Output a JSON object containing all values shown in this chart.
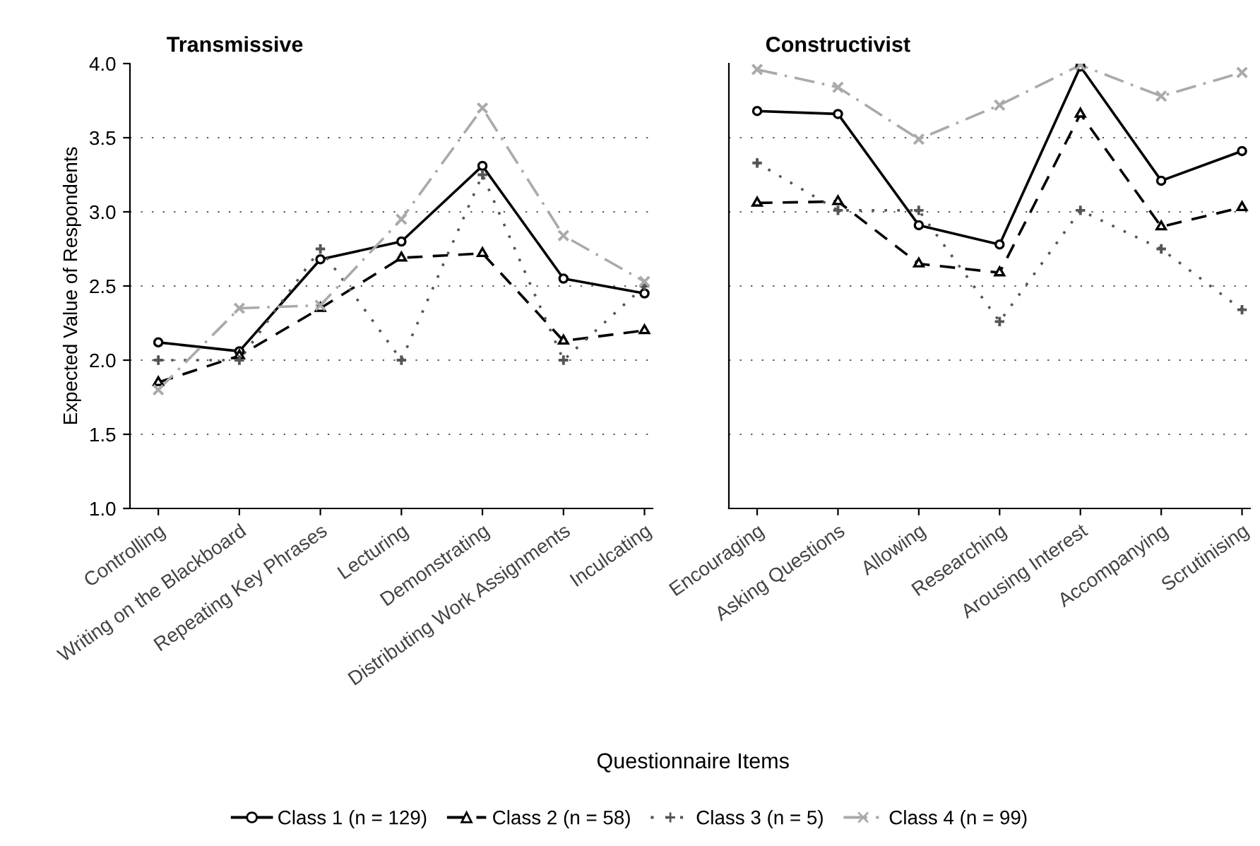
{
  "chart_data": [
    {
      "type": "line",
      "title": "Transmissive",
      "xlabel": "Questionnaire Items",
      "ylabel": "Expected Value of Respondents",
      "categories": [
        "Controlling",
        "Writing on the Blackboard",
        "Repeating Key Phrases",
        "Lecturing",
        "Demonstrating",
        "Distributing Work Assignments",
        "Inculcating"
      ],
      "series": [
        {
          "name": "Class 1 (n = 129)",
          "color": "#000000",
          "marker": "circle",
          "line_style": "solid",
          "values": [
            2.12,
            2.06,
            2.68,
            2.8,
            3.31,
            2.55,
            2.45
          ]
        },
        {
          "name": "Class 2 (n = 58)",
          "color": "#000000",
          "marker": "triangle",
          "line_style": "dashed",
          "values": [
            1.85,
            2.03,
            2.35,
            2.69,
            2.72,
            2.13,
            2.2
          ]
        },
        {
          "name": "Class 3 (n = 5)",
          "color": "#555555",
          "marker": "cross",
          "line_style": "dotted",
          "values": [
            2.0,
            2.0,
            2.75,
            2.0,
            3.25,
            2.0,
            2.5
          ]
        },
        {
          "name": "Class 4 (n = 99)",
          "color": "#aaaaaa",
          "marker": "x",
          "line_style": "dashdot",
          "values": [
            1.8,
            2.35,
            2.37,
            2.95,
            3.7,
            2.84,
            2.53
          ]
        }
      ],
      "ylim": [
        1,
        4
      ],
      "yticks": [
        {
          "value": 1,
          "label": "1.0"
        },
        {
          "value": 1.5,
          "label": "1.5"
        },
        {
          "value": 2,
          "label": "2.0"
        },
        {
          "value": 2.5,
          "label": "2.5"
        },
        {
          "value": 3,
          "label": "3.0"
        },
        {
          "value": 3.5,
          "label": "3.5"
        },
        {
          "value": 4,
          "label": "4.0"
        }
      ],
      "grid": "y",
      "legend": "bottom"
    },
    {
      "type": "line",
      "title": "Constructivist",
      "categories": [
        "Encouraging",
        "Asking Questions",
        "Allowing",
        "Researching",
        "Arousing Interest",
        "Accompanying",
        "Scrutinising"
      ],
      "series": [
        {
          "color": "#000000",
          "marker": "circle",
          "line_style": "solid",
          "values": [
            3.68,
            3.66,
            2.91,
            2.78,
            3.98,
            3.21,
            3.41
          ]
        },
        {
          "color": "#000000",
          "marker": "triangle",
          "line_style": "dashed",
          "values": [
            3.06,
            3.07,
            2.65,
            2.59,
            3.66,
            2.9,
            3.03
          ]
        },
        {
          "color": "#555555",
          "marker": "cross",
          "line_style": "dotted",
          "values": [
            3.33,
            3.01,
            3.01,
            2.26,
            3.01,
            2.75,
            2.34
          ]
        },
        {
          "color": "#aaaaaa",
          "marker": "x",
          "line_style": "dashdot",
          "values": [
            3.96,
            3.84,
            3.49,
            3.72,
            3.99,
            3.78,
            3.94
          ]
        }
      ],
      "ylim": [
        1,
        4
      ],
      "yticks": [
        1,
        1.5,
        2,
        2.5,
        3,
        3.5,
        4
      ],
      "grid": "y",
      "tick_labels": "x"
    }
  ]
}
